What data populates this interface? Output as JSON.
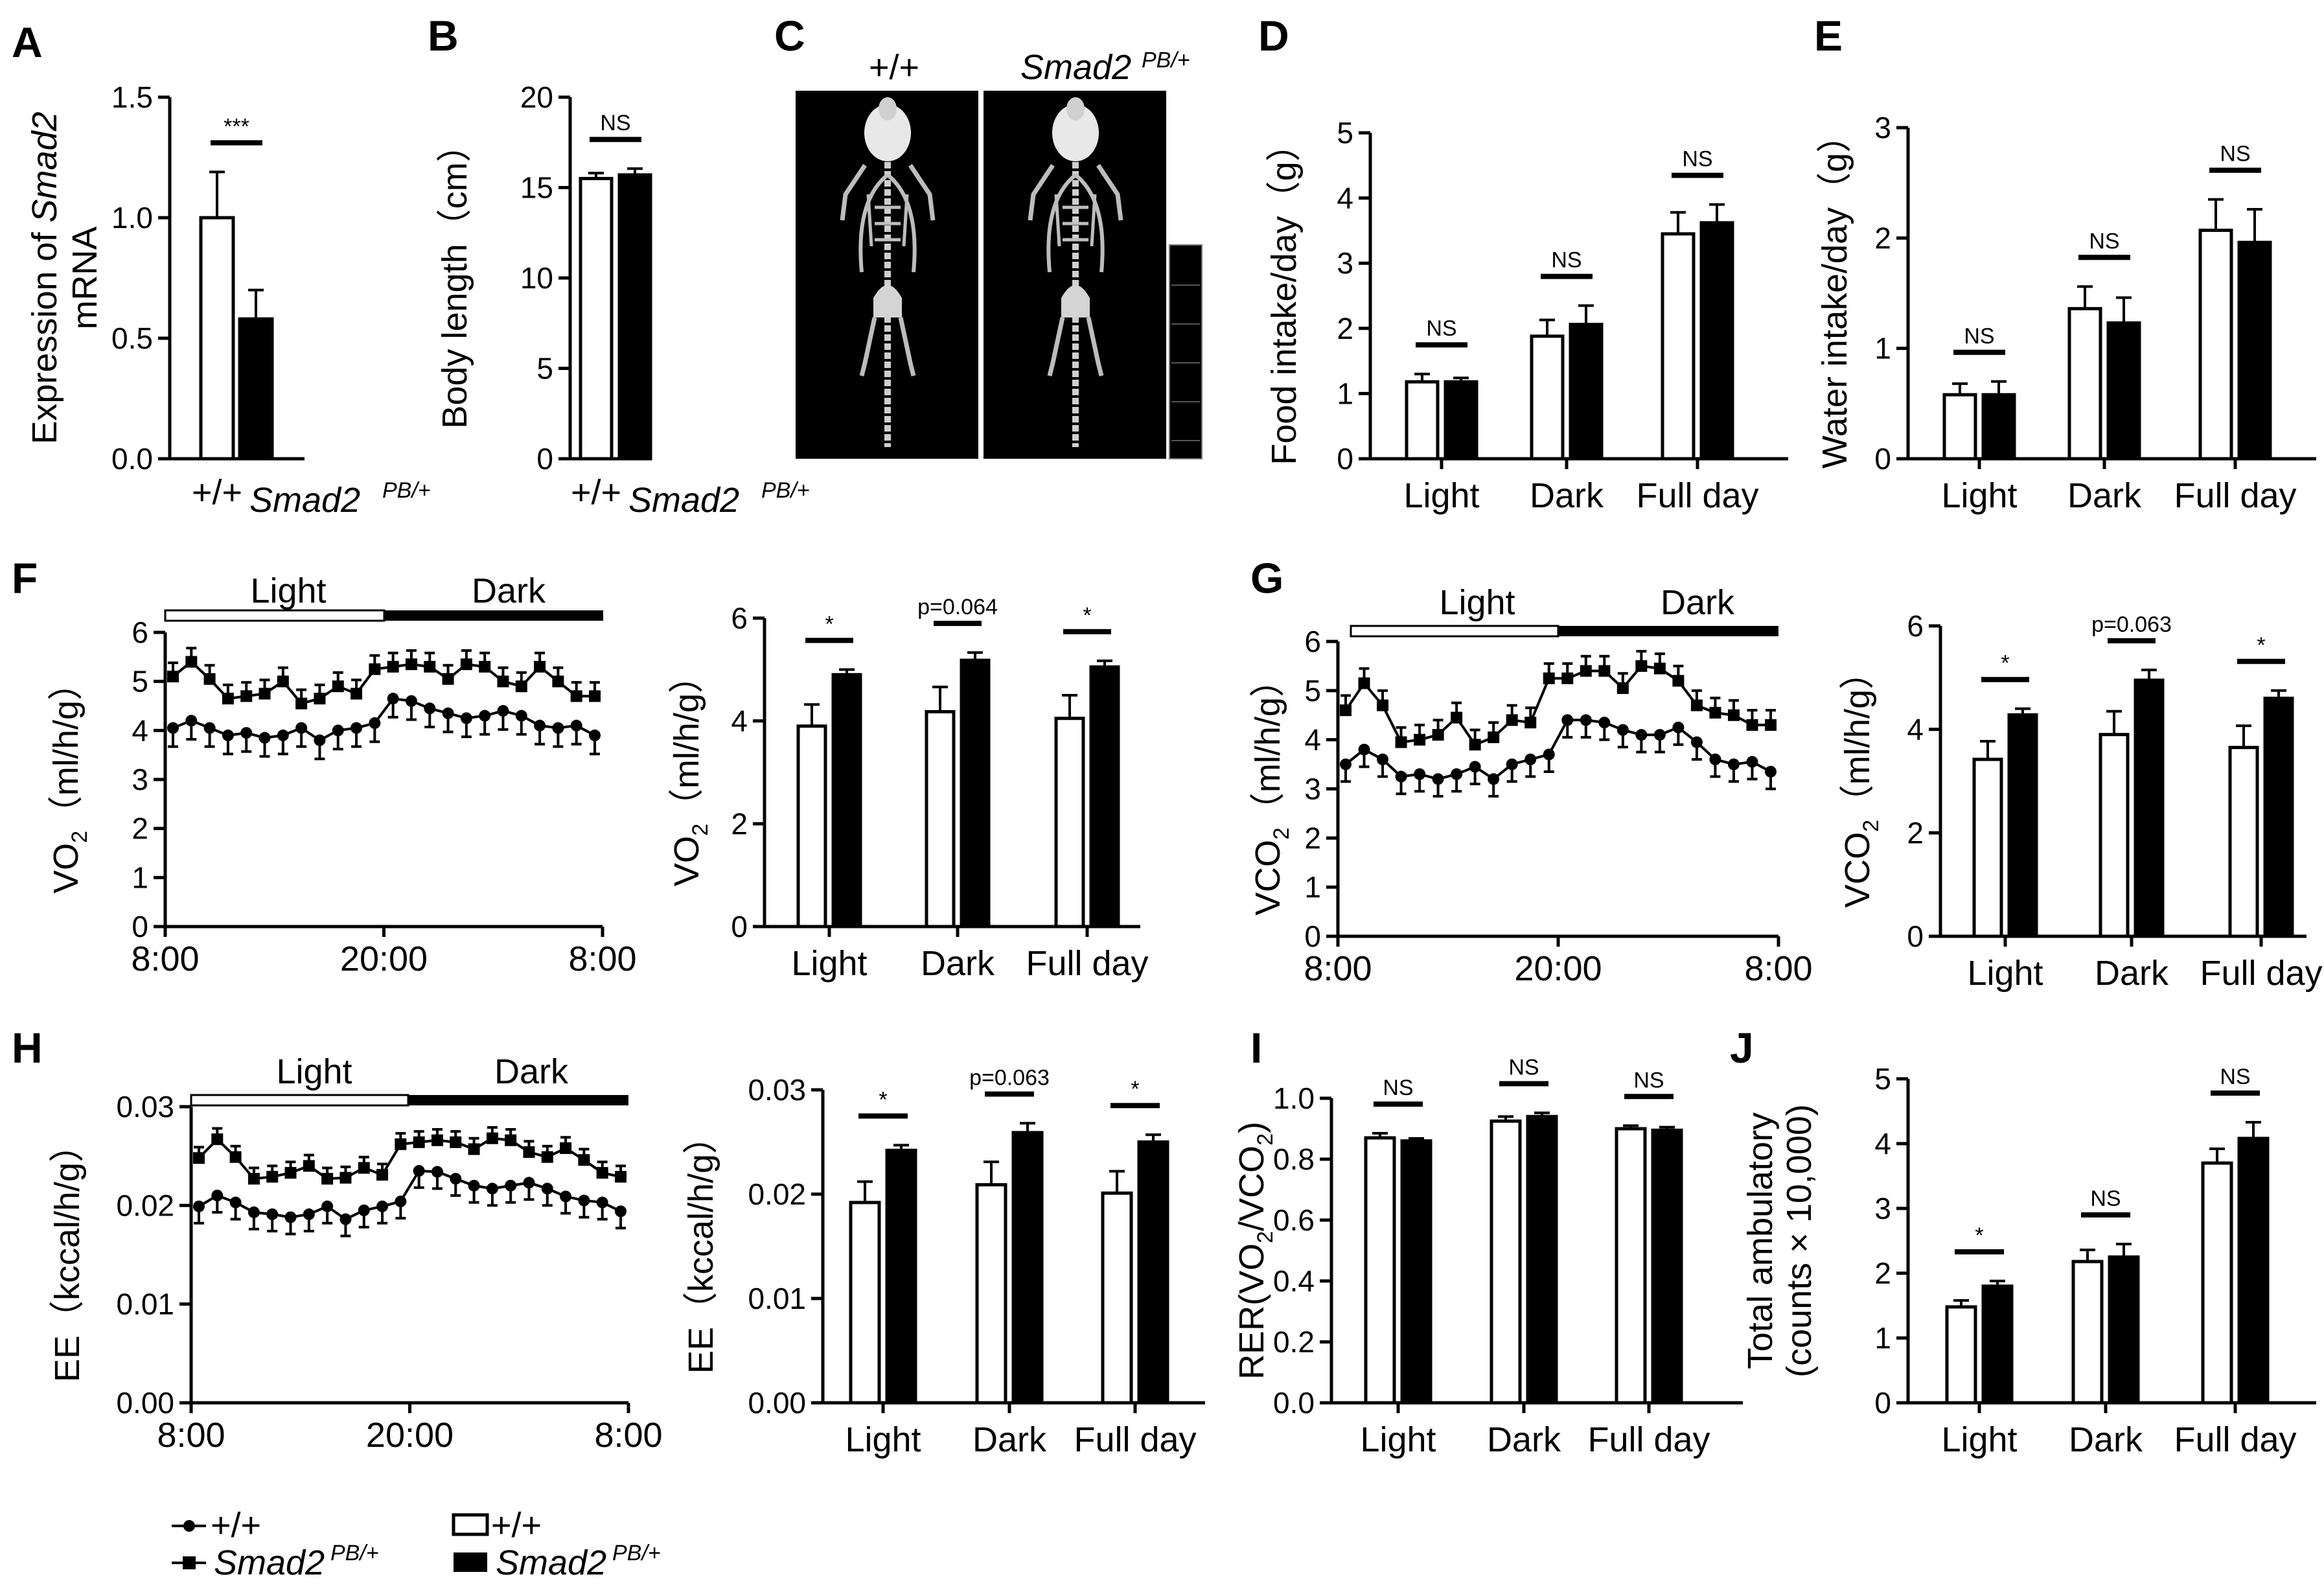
{
  "panels": {
    "A": "A",
    "B": "B",
    "C": "C",
    "D": "D",
    "E": "E",
    "F": "F",
    "G": "G",
    "H": "H",
    "I": "I",
    "J": "J"
  },
  "phase": {
    "light": "Light",
    "dark": "Dark"
  },
  "ct": {
    "wt": "+/+",
    "mut": "Smad2",
    "mut_sup": "PB/+"
  },
  "legend": {
    "line_wt": "+/+",
    "line_mut": "Smad2",
    "line_mut_sup": "PB/+",
    "bar_wt": "+/+",
    "bar_mut": "Smad2",
    "bar_mut_sup": "PB/+"
  },
  "chart_data": [
    {
      "id": "A",
      "type": "bar",
      "ylabel": "Expression of Smad2 mRNA",
      "ylabel_parts": [
        "Expression of ",
        "Smad2",
        "mRNA"
      ],
      "categories": [
        "+/+",
        "Smad2"
      ],
      "cat_sup": [
        "",
        "PB/+"
      ],
      "values": [
        1.0,
        0.58
      ],
      "errors": [
        0.19,
        0.12
      ],
      "ylim": [
        0,
        1.5
      ],
      "yticks": [
        0.0,
        0.5,
        1.0,
        1.5
      ],
      "ytick_labels": [
        "0.0",
        "0.5",
        "1.0",
        "1.5"
      ],
      "significance": [
        "***"
      ]
    },
    {
      "id": "B",
      "type": "bar",
      "ylabel": "Body length（cm）",
      "categories": [
        "+/+",
        "Smad2"
      ],
      "cat_sup": [
        "",
        "PB/+"
      ],
      "values": [
        15.5,
        15.7
      ],
      "errors": [
        0.3,
        0.35
      ],
      "ylim": [
        0,
        20
      ],
      "yticks": [
        0,
        5,
        10,
        15,
        20
      ],
      "ytick_labels": [
        "0",
        "5",
        "10",
        "15",
        "20"
      ],
      "significance": [
        "NS"
      ]
    },
    {
      "id": "D",
      "type": "bar",
      "ylabel": "Food intake/day（g）",
      "categories": [
        "Light",
        "Dark",
        "Full day"
      ],
      "series": [
        {
          "name": "+/+",
          "values": [
            1.18,
            1.88,
            3.45
          ],
          "errors": [
            0.12,
            0.25,
            0.33
          ]
        },
        {
          "name": "Smad2 PB/+",
          "values": [
            1.18,
            2.06,
            3.62
          ],
          "errors": [
            0.06,
            0.29,
            0.28
          ]
        }
      ],
      "ylim": [
        0,
        5
      ],
      "yticks": [
        0,
        1,
        2,
        3,
        4,
        5
      ],
      "ytick_labels": [
        "0",
        "1",
        "2",
        "3",
        "4",
        "5"
      ],
      "significance": [
        "NS",
        "NS",
        "NS"
      ]
    },
    {
      "id": "E",
      "type": "bar",
      "ylabel": "Water intake/day（g）",
      "categories": [
        "Light",
        "Dark",
        "Full day"
      ],
      "series": [
        {
          "name": "+/+",
          "values": [
            0.58,
            1.36,
            2.07
          ],
          "errors": [
            0.1,
            0.2,
            0.28
          ]
        },
        {
          "name": "Smad2 PB/+",
          "values": [
            0.58,
            1.23,
            1.96
          ],
          "errors": [
            0.12,
            0.23,
            0.3
          ]
        }
      ],
      "ylim": [
        0,
        3
      ],
      "yticks": [
        0,
        1,
        2,
        3
      ],
      "ytick_labels": [
        "0",
        "1",
        "2",
        "3"
      ],
      "significance": [
        "NS",
        "NS",
        "NS"
      ]
    },
    {
      "id": "F1",
      "type": "line",
      "ylabel": "VO2（ml/h/g）",
      "ylabel_main": "VO",
      "ylabel_sub": "2",
      "ylabel_rest": "（ml/h/g）",
      "xticks": [
        "8:00",
        "20:00",
        "8:00"
      ],
      "ylim": [
        0,
        6
      ],
      "yticks": [
        0,
        1,
        2,
        3,
        4,
        5,
        6
      ],
      "ytick_labels": [
        "0",
        "1",
        "2",
        "3",
        "4",
        "5",
        "6"
      ],
      "series": [
        {
          "name": "+/+",
          "values": [
            4.05,
            4.2,
            4.05,
            3.9,
            3.95,
            3.85,
            3.9,
            4.05,
            3.8,
            4.0,
            4.05,
            4.15,
            4.65,
            4.6,
            4.45,
            4.35,
            4.25,
            4.3,
            4.4,
            4.3,
            4.1,
            4.05,
            4.1,
            3.9
          ],
          "err": 0.38
        },
        {
          "name": "Smad2 PB/+",
          "values": [
            5.1,
            5.4,
            5.05,
            4.65,
            4.7,
            4.75,
            5.0,
            4.55,
            4.65,
            4.9,
            4.75,
            5.25,
            5.3,
            5.35,
            5.3,
            5.05,
            5.35,
            5.3,
            5.0,
            4.9,
            5.3,
            5.0,
            4.7,
            4.7
          ],
          "err": 0.28
        }
      ]
    },
    {
      "id": "F2",
      "type": "bar",
      "ylabel": "VO2（ml/h/g）",
      "ylabel_main": "VO",
      "ylabel_sub": "2",
      "ylabel_rest": "（ml/h/g）",
      "categories": [
        "Light",
        "Dark",
        "Full day"
      ],
      "series": [
        {
          "name": "+/+",
          "values": [
            3.9,
            4.18,
            4.05
          ],
          "errors": [
            0.42,
            0.48,
            0.45
          ]
        },
        {
          "name": "Smad2 PB/+",
          "values": [
            4.9,
            5.18,
            5.05
          ],
          "errors": [
            0.1,
            0.15,
            0.12
          ]
        }
      ],
      "ylim": [
        0,
        6
      ],
      "yticks": [
        0,
        2,
        4,
        6
      ],
      "ytick_labels": [
        "0",
        "2",
        "4",
        "6"
      ],
      "significance": [
        "*",
        "p=0.064",
        "*"
      ]
    },
    {
      "id": "G1",
      "type": "line",
      "ylabel": "VCO2（ml/h/g）",
      "ylabel_main": "VCO",
      "ylabel_sub": "2",
      "ylabel_rest": "（ml/h/g）",
      "xticks": [
        "8:00",
        "20:00",
        "8:00"
      ],
      "ylim": [
        0,
        6
      ],
      "yticks": [
        0,
        1,
        2,
        3,
        4,
        5,
        6
      ],
      "ytick_labels": [
        "0",
        "1",
        "2",
        "3",
        "4",
        "5",
        "6"
      ],
      "series": [
        {
          "name": "+/+",
          "values": [
            3.5,
            3.8,
            3.6,
            3.25,
            3.3,
            3.2,
            3.3,
            3.45,
            3.2,
            3.5,
            3.6,
            3.7,
            4.4,
            4.4,
            4.35,
            4.2,
            4.1,
            4.1,
            4.25,
            3.95,
            3.6,
            3.5,
            3.55,
            3.35
          ],
          "err": 0.35
        },
        {
          "name": "Smad2 PB/+",
          "values": [
            4.6,
            5.15,
            4.7,
            3.95,
            4.0,
            4.1,
            4.45,
            3.9,
            4.05,
            4.4,
            4.35,
            5.25,
            5.25,
            5.4,
            5.4,
            5.05,
            5.5,
            5.45,
            5.2,
            4.7,
            4.55,
            4.5,
            4.3,
            4.3
          ],
          "err": 0.3
        }
      ]
    },
    {
      "id": "G2",
      "type": "bar",
      "ylabel": "VCO2（ml/h/g）",
      "ylabel_main": "VCO",
      "ylabel_sub": "2",
      "ylabel_rest": "（ml/h/g）",
      "categories": [
        "Light",
        "Dark",
        "Full day"
      ],
      "series": [
        {
          "name": "+/+",
          "values": [
            3.42,
            3.9,
            3.65
          ],
          "errors": [
            0.35,
            0.45,
            0.42
          ]
        },
        {
          "name": "Smad2 PB/+",
          "values": [
            4.28,
            4.95,
            4.6
          ],
          "errors": [
            0.12,
            0.2,
            0.15
          ]
        }
      ],
      "ylim": [
        0,
        6
      ],
      "yticks": [
        0,
        2,
        4,
        6
      ],
      "ytick_labels": [
        "0",
        "2",
        "4",
        "6"
      ],
      "significance": [
        "*",
        "p=0.063",
        "*"
      ]
    },
    {
      "id": "H1",
      "type": "line",
      "ylabel": "EE（kccal/h/g）",
      "xticks": [
        "8:00",
        "20:00",
        "8:00"
      ],
      "ylim": [
        0,
        0.03
      ],
      "yticks": [
        0,
        0.01,
        0.02,
        0.03
      ],
      "ytick_labels": [
        "0.00",
        "0.01",
        "0.02",
        "0.03"
      ],
      "series": [
        {
          "name": "+/+",
          "values": [
            0.0199,
            0.021,
            0.0203,
            0.0193,
            0.0191,
            0.0188,
            0.0191,
            0.0199,
            0.0186,
            0.0195,
            0.0199,
            0.0204,
            0.0235,
            0.0234,
            0.0227,
            0.022,
            0.0217,
            0.022,
            0.0223,
            0.0217,
            0.0209,
            0.0205,
            0.0203,
            0.0194
          ],
          "err": 0.0017
        },
        {
          "name": "Smad2 PB/+",
          "values": [
            0.0248,
            0.0267,
            0.0249,
            0.0227,
            0.0229,
            0.0233,
            0.024,
            0.0227,
            0.0228,
            0.0238,
            0.0231,
            0.0262,
            0.0264,
            0.0266,
            0.0264,
            0.0257,
            0.0268,
            0.0266,
            0.0254,
            0.0249,
            0.0258,
            0.0246,
            0.0233,
            0.0229
          ],
          "err": 0.0011
        }
      ]
    },
    {
      "id": "H2",
      "type": "bar",
      "ylabel": "EE（kccal/h/g）",
      "categories": [
        "Light",
        "Dark",
        "Full day"
      ],
      "series": [
        {
          "name": "+/+",
          "values": [
            0.0192,
            0.0209,
            0.0201
          ],
          "errors": [
            0.002,
            0.0022,
            0.0021
          ]
        },
        {
          "name": "Smad2 PB/+",
          "values": [
            0.0242,
            0.0259,
            0.025
          ],
          "errors": [
            0.0005,
            0.0009,
            0.0007
          ]
        }
      ],
      "ylim": [
        0,
        0.03
      ],
      "yticks": [
        0,
        0.01,
        0.02,
        0.03
      ],
      "ytick_labels": [
        "0.00",
        "0.01",
        "0.02",
        "0.03"
      ],
      "significance": [
        "*",
        "p=0.063",
        "*"
      ]
    },
    {
      "id": "I",
      "type": "bar",
      "ylabel": "RER(VO2/VCO2)",
      "categories": [
        "Light",
        "Dark",
        "Full day"
      ],
      "series": [
        {
          "name": "+/+",
          "values": [
            0.87,
            0.925,
            0.9
          ],
          "errors": [
            0.015,
            0.015,
            0.01
          ]
        },
        {
          "name": "Smad2 PB/+",
          "values": [
            0.86,
            0.94,
            0.895
          ],
          "errors": [
            0.008,
            0.012,
            0.01
          ]
        }
      ],
      "ylim": [
        0,
        1.0
      ],
      "yticks": [
        0,
        0.2,
        0.4,
        0.6,
        0.8,
        1.0
      ],
      "ytick_labels": [
        "0.0",
        "0.2",
        "0.4",
        "0.6",
        "0.8",
        "1.0"
      ],
      "significance": [
        "NS",
        "NS",
        "NS"
      ]
    },
    {
      "id": "J",
      "type": "bar",
      "ylabel": "Total ambulatory (counts × 10,000)",
      "ylabel_line1": "Total ambulatory",
      "ylabel_line2": "(counts × 10,000)",
      "categories": [
        "Light",
        "Dark",
        "Full day"
      ],
      "series": [
        {
          "name": "+/+",
          "values": [
            1.48,
            2.18,
            3.7
          ],
          "errors": [
            0.1,
            0.18,
            0.22
          ]
        },
        {
          "name": "Smad2 PB/+",
          "values": [
            1.8,
            2.25,
            4.08
          ],
          "errors": [
            0.08,
            0.2,
            0.25
          ]
        }
      ],
      "ylim": [
        0,
        5
      ],
      "yticks": [
        0,
        1,
        2,
        3,
        4,
        5
      ],
      "ytick_labels": [
        "0",
        "1",
        "2",
        "3",
        "4",
        "5"
      ],
      "significance": [
        "*",
        "NS",
        "NS"
      ]
    }
  ]
}
